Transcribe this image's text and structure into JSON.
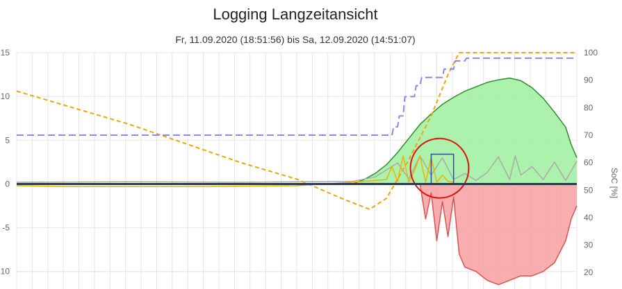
{
  "chart_data": {
    "type": "area",
    "title": "Logging Langzeitansicht",
    "subtitle": "Fr, 11.09.2020 (18:51:56) bis Sa, 12.09.2020 (14:51:07)",
    "ylabel": "",
    "y2label": "SoC [%]",
    "ylim": [
      -12,
      15
    ],
    "y2lim": [
      14,
      100
    ],
    "yticks": [
      15,
      10,
      5,
      0,
      -5,
      -10
    ],
    "y2ticks": [
      100,
      90,
      80,
      70,
      60,
      50,
      40,
      30,
      20
    ],
    "x_domain": [
      0,
      100
    ],
    "grid": true,
    "legend": "none",
    "series": [
      {
        "color": "#2e8b2e",
        "fill": "#9ef09e",
        "axis": "left",
        "x": [
          0,
          60,
          62,
          64,
          66,
          68,
          70,
          72,
          74,
          76,
          78,
          80,
          82,
          84,
          86,
          88,
          90,
          92,
          94,
          96,
          98,
          99,
          100
        ],
        "values": [
          0,
          0,
          0.5,
          1.2,
          2.2,
          3.6,
          5.2,
          6.8,
          8.0,
          9.1,
          9.9,
          10.6,
          11.1,
          11.6,
          11.9,
          12.1,
          11.8,
          11.0,
          9.8,
          8.2,
          6.5,
          4.5,
          3.0
        ]
      },
      {
        "color": "#e05050",
        "fill": "#f7a0a0",
        "axis": "left",
        "x": [
          0,
          72,
          73,
          74,
          75,
          76,
          77,
          78,
          79,
          80,
          82,
          84,
          86,
          88,
          90,
          92,
          94,
          96,
          98,
          99,
          100
        ],
        "values": [
          0,
          0,
          -4,
          -1,
          -6.5,
          -2,
          -6,
          -1.5,
          -8,
          -9.5,
          -10,
          -11,
          -11.5,
          -11,
          -10.5,
          -10.5,
          -10,
          -9,
          -6.5,
          -4,
          -2.5
        ]
      },
      {
        "color": "#aaaaaa",
        "axis": "left",
        "x": [
          0,
          20,
          40,
          60,
          64,
          66,
          68,
          70,
          72,
          74,
          76,
          78,
          80,
          82,
          84,
          86,
          88,
          89,
          90,
          92,
          94,
          96,
          98,
          100
        ],
        "values": [
          0.2,
          0.25,
          0.2,
          0.3,
          0.8,
          1.6,
          2.4,
          0.6,
          3.2,
          1.0,
          3.0,
          0.5,
          1.2,
          0.4,
          1.3,
          3.1,
          0.5,
          3.2,
          1.0,
          2.0,
          0.5,
          2.5,
          0.4,
          2.6
        ]
      },
      {
        "color": "#e8b400",
        "axis": "left",
        "x": [
          0,
          10,
          30,
          50,
          60,
          66,
          67,
          68,
          69,
          70,
          71,
          72,
          73,
          74,
          75,
          76,
          77,
          78
        ],
        "values": [
          -0.2,
          -0.3,
          -0.3,
          -0.2,
          0.2,
          0.5,
          2.0,
          0.3,
          3.2,
          0.2,
          1.5,
          3.2,
          0.2,
          3.0,
          0.2,
          1.0,
          0.3,
          0.2
        ]
      },
      {
        "color": "#f0a500",
        "dash": "6 4",
        "axis": "right",
        "x": [
          0,
          10,
          20,
          30,
          40,
          50,
          58,
          63,
          66,
          70,
          74,
          77,
          79,
          80,
          100
        ],
        "values": [
          86,
          80,
          74,
          67,
          60,
          54,
          47,
          43,
          47,
          61,
          77,
          92,
          100,
          100,
          100
        ]
      },
      {
        "color": "#8888ee",
        "dash": "10 5",
        "axis": "right",
        "x": [
          0,
          67,
          67.3,
          68,
          68.3,
          69,
          69.3,
          71,
          71.3,
          72,
          72.3,
          76,
          76.3,
          78,
          78.3,
          80,
          80.3,
          100
        ],
        "values": [
          70,
          70,
          73,
          73,
          77,
          77,
          84,
          84,
          88,
          88,
          91,
          91,
          94,
          94,
          97,
          97,
          98,
          98
        ]
      }
    ],
    "annotations": [
      {
        "type": "rect",
        "color": "#3a4d8a",
        "x_range": [
          74,
          78
        ],
        "y_range": [
          0,
          3.4
        ]
      },
      {
        "type": "ellipse-freehand",
        "color": "#e01010",
        "center": [
          75.5,
          1.8
        ],
        "radius": [
          5.2,
          3.4
        ]
      }
    ]
  }
}
